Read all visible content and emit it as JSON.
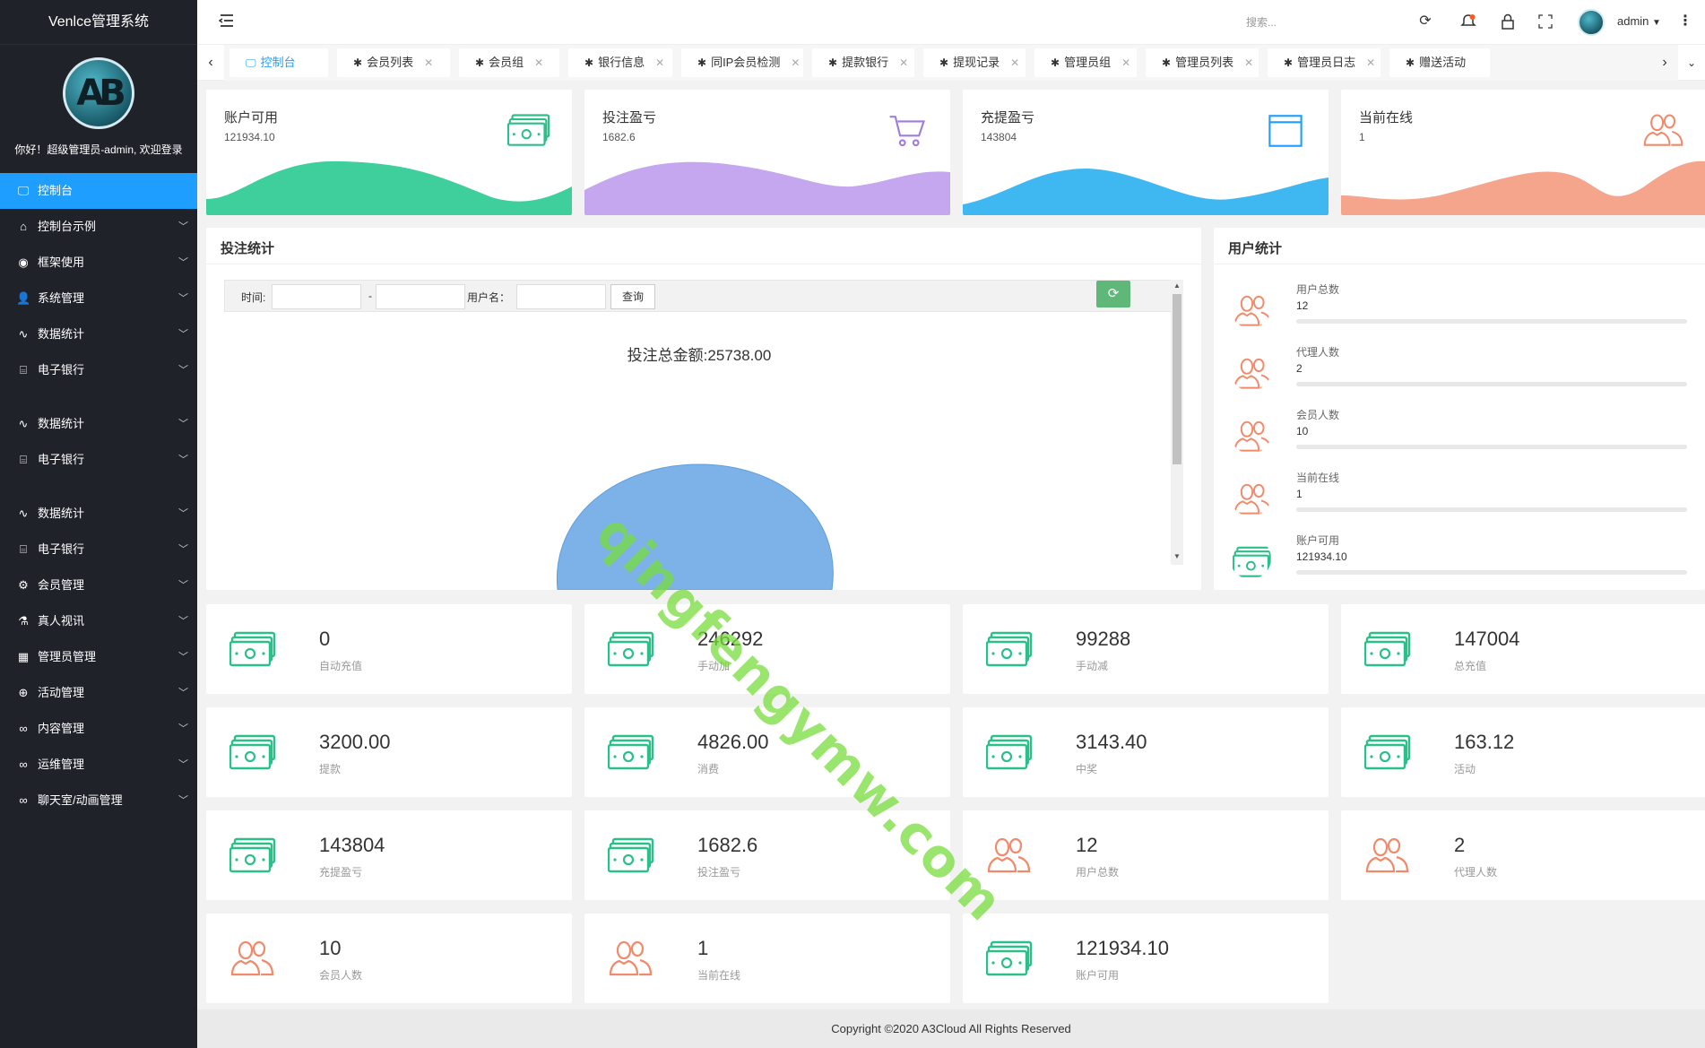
{
  "app": {
    "title": "Venlce管理系统",
    "welcome": "你好！超级管理员-admin, 欢迎登录",
    "logo_letters": "AB"
  },
  "colors": {
    "sidebar_bg": "#20222a",
    "active": "#1e9fff",
    "green": "#3ecf9c",
    "purple": "#c4a7ef",
    "blue": "#3fb7f0",
    "salmon": "#f5a58c",
    "refresh": "#5fb878"
  },
  "sidebar": {
    "items": [
      {
        "label": "控制台",
        "icon": "monitor-icon",
        "active": true,
        "chevron": false
      },
      {
        "label": "控制台示例",
        "icon": "home-icon",
        "chevron": true
      },
      {
        "label": "框架使用",
        "icon": "circle-dots-icon",
        "chevron": true
      },
      {
        "label": "系统管理",
        "icon": "user-icon",
        "chevron": true
      },
      {
        "label": "数据统计",
        "icon": "pulse-icon",
        "chevron": true
      },
      {
        "label": "电子银行",
        "icon": "bank-icon",
        "chevron": true
      },
      {
        "label": "数据统计",
        "icon": "pulse-icon",
        "chevron": true
      },
      {
        "label": "电子银行",
        "icon": "bank-icon",
        "chevron": true
      },
      {
        "label": "数据统计",
        "icon": "pulse-icon",
        "chevron": true
      },
      {
        "label": "电子银行",
        "icon": "bank-icon",
        "chevron": true
      },
      {
        "label": "会员管理",
        "icon": "gear-icon",
        "chevron": true
      },
      {
        "label": "真人视讯",
        "icon": "flask-icon",
        "chevron": true
      },
      {
        "label": "管理员管理",
        "icon": "grid-icon",
        "chevron": true
      },
      {
        "label": "活动管理",
        "icon": "plus-circle-icon",
        "chevron": true
      },
      {
        "label": "内容管理",
        "icon": "infinity-icon",
        "chevron": true
      },
      {
        "label": "运维管理",
        "icon": "infinity-icon",
        "chevron": true
      },
      {
        "label": "聊天室/动画管理",
        "icon": "infinity-icon",
        "chevron": true
      }
    ]
  },
  "header": {
    "search_placeholder": "搜索...",
    "user": "admin"
  },
  "tabs": [
    {
      "label": "控制台",
      "active": true,
      "closable": false
    },
    {
      "label": "会员列表",
      "closable": true
    },
    {
      "label": "会员组",
      "closable": true
    },
    {
      "label": "银行信息",
      "closable": true
    },
    {
      "label": "同IP会员检测",
      "closable": true
    },
    {
      "label": "提款银行",
      "closable": true
    },
    {
      "label": "提现记录",
      "closable": true
    },
    {
      "label": "管理员组",
      "closable": true
    },
    {
      "label": "管理员列表",
      "closable": true
    },
    {
      "label": "管理员日志",
      "closable": true
    },
    {
      "label": "赠送活动",
      "closable": false
    }
  ],
  "top_cards": [
    {
      "title": "账户可用",
      "value": "121934.10",
      "icon": "money-icon",
      "color": "#3ecf9c"
    },
    {
      "title": "投注盈亏",
      "value": "1682.6",
      "icon": "cart-icon",
      "color": "#c4a7ef"
    },
    {
      "title": "充提盈亏",
      "value": "143804",
      "icon": "window-icon",
      "color": "#3fb7f0"
    },
    {
      "title": "当前在线",
      "value": "1",
      "icon": "users-icon",
      "color": "#f5a58c"
    }
  ],
  "bet_panel": {
    "title": "投注统计",
    "filter": {
      "time_label": "时间:",
      "dash": "-",
      "user_label": "用户名：",
      "query": "查询"
    },
    "total_label": "投注总金额:",
    "total_value": "25738.00"
  },
  "user_panel": {
    "title": "用户统计",
    "rows": [
      {
        "label": "用户总数",
        "value": "12",
        "icon": "users-icon"
      },
      {
        "label": "代理人数",
        "value": "2",
        "icon": "users-icon"
      },
      {
        "label": "会员人数",
        "value": "10",
        "icon": "users-icon"
      },
      {
        "label": "当前在线",
        "value": "1",
        "icon": "users-icon"
      },
      {
        "label": "账户可用",
        "value": "121934.10",
        "icon": "money-icon"
      }
    ]
  },
  "stats": [
    {
      "value": "0",
      "label": "自动充值",
      "icon": "money-icon"
    },
    {
      "value": "246292",
      "label": "手动加",
      "icon": "money-icon"
    },
    {
      "value": "99288",
      "label": "手动减",
      "icon": "money-icon"
    },
    {
      "value": "147004",
      "label": "总充值",
      "icon": "money-icon"
    },
    {
      "value": "3200.00",
      "label": "提款",
      "icon": "money-icon"
    },
    {
      "value": "4826.00",
      "label": "消费",
      "icon": "money-icon"
    },
    {
      "value": "3143.40",
      "label": "中奖",
      "icon": "money-icon"
    },
    {
      "value": "163.12",
      "label": "活动",
      "icon": "money-icon"
    },
    {
      "value": "143804",
      "label": "充提盈亏",
      "icon": "money-icon"
    },
    {
      "value": "1682.6",
      "label": "投注盈亏",
      "icon": "money-icon"
    },
    {
      "value": "12",
      "label": "用户总数",
      "icon": "users-icon"
    },
    {
      "value": "2",
      "label": "代理人数",
      "icon": "users-icon"
    },
    {
      "value": "10",
      "label": "会员人数",
      "icon": "users-icon"
    },
    {
      "value": "1",
      "label": "当前在线",
      "icon": "users-icon"
    },
    {
      "value": "121934.10",
      "label": "账户可用",
      "icon": "money-icon"
    }
  ],
  "footer": "Copyright ©2020 A3Cloud All Rights Reserved",
  "watermark": "qingfengymw.com"
}
